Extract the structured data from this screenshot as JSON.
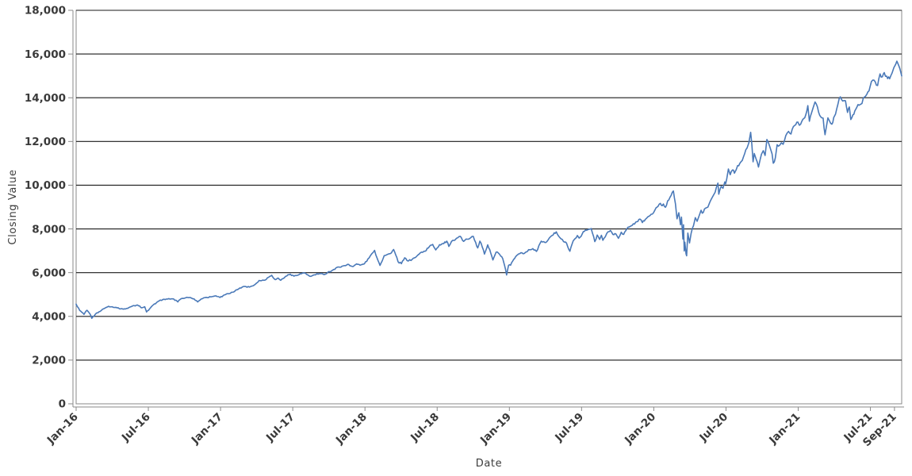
{
  "page": {
    "background": "#ffffff"
  },
  "chart_data": {
    "type": "line",
    "title": "",
    "xlabel": "Date",
    "ylabel": "Closing Value",
    "legend_position": "none",
    "grid": "horizontal-only",
    "ylim": [
      0,
      18000
    ],
    "y_tick_values": [
      0,
      2000,
      4000,
      6000,
      8000,
      10000,
      12000,
      14000,
      16000,
      18000
    ],
    "y_tick_labels": [
      "0",
      "2,000",
      "4,000",
      "6,000",
      "8,000",
      "10,000",
      "12,000",
      "14,000",
      "16,000",
      "18,000"
    ],
    "x_domain_months_from_jan16": [
      0,
      68.6
    ],
    "x_tick_months": [
      0,
      6,
      12,
      18,
      24,
      30,
      36,
      42,
      48,
      54,
      60,
      66,
      68
    ],
    "x_tick_labels": [
      "Jan-16",
      "Jul-16",
      "Jan-17",
      "Jul-17",
      "Jan-18",
      "Jul-18",
      "Jan-19",
      "Jul-19",
      "Jan-20",
      "Jul-20",
      "Jan-21",
      "Jul-21",
      "Sep-21"
    ],
    "colors": {
      "line": "#4a79b8",
      "grid": "#1a1a1a",
      "frame": "#8a8a8a",
      "tick_label": "#3a3a3a",
      "axis_title": "#3c3c3c",
      "background": "#ffffff"
    },
    "series": [
      {
        "name": "Closing Value",
        "color": "#4a79b8",
        "points_format": "[months_after_Jan_2016, closing_value] anchor points read from chart",
        "points": [
          [
            0.0,
            4560
          ],
          [
            0.3,
            4270
          ],
          [
            0.65,
            4090
          ],
          [
            0.9,
            4280
          ],
          [
            1.15,
            4110
          ],
          [
            1.3,
            3910
          ],
          [
            1.6,
            4100
          ],
          [
            1.9,
            4210
          ],
          [
            2.3,
            4350
          ],
          [
            2.7,
            4460
          ],
          [
            3.0,
            4440
          ],
          [
            3.4,
            4390
          ],
          [
            3.9,
            4330
          ],
          [
            4.3,
            4370
          ],
          [
            4.7,
            4480
          ],
          [
            5.1,
            4520
          ],
          [
            5.45,
            4390
          ],
          [
            5.7,
            4440
          ],
          [
            5.85,
            4200
          ],
          [
            6.1,
            4340
          ],
          [
            6.4,
            4520
          ],
          [
            6.8,
            4680
          ],
          [
            7.2,
            4770
          ],
          [
            7.6,
            4790
          ],
          [
            7.9,
            4800
          ],
          [
            8.3,
            4740
          ],
          [
            8.45,
            4660
          ],
          [
            8.7,
            4800
          ],
          [
            9.0,
            4830
          ],
          [
            9.4,
            4860
          ],
          [
            9.8,
            4800
          ],
          [
            10.1,
            4660
          ],
          [
            10.4,
            4800
          ],
          [
            10.8,
            4870
          ],
          [
            11.2,
            4890
          ],
          [
            11.6,
            4940
          ],
          [
            11.95,
            4863
          ],
          [
            12.3,
            4980
          ],
          [
            12.8,
            5050
          ],
          [
            13.2,
            5160
          ],
          [
            13.6,
            5300
          ],
          [
            14.0,
            5370
          ],
          [
            14.4,
            5340
          ],
          [
            14.8,
            5430
          ],
          [
            15.2,
            5640
          ],
          [
            15.6,
            5650
          ],
          [
            16.0,
            5790
          ],
          [
            16.25,
            5880
          ],
          [
            16.55,
            5680
          ],
          [
            16.8,
            5750
          ],
          [
            17.0,
            5650
          ],
          [
            17.4,
            5830
          ],
          [
            17.8,
            5930
          ],
          [
            18.1,
            5840
          ],
          [
            18.5,
            5900
          ],
          [
            18.9,
            5990
          ],
          [
            19.15,
            5920
          ],
          [
            19.5,
            5830
          ],
          [
            19.8,
            5900
          ],
          [
            20.2,
            5950
          ],
          [
            20.6,
            5910
          ],
          [
            20.9,
            6010
          ],
          [
            21.3,
            6110
          ],
          [
            21.8,
            6260
          ],
          [
            22.2,
            6310
          ],
          [
            22.55,
            6380
          ],
          [
            22.95,
            6280
          ],
          [
            23.3,
            6400
          ],
          [
            23.6,
            6340
          ],
          [
            23.95,
            6400
          ],
          [
            24.35,
            6680
          ],
          [
            24.8,
            7020
          ],
          [
            25.0,
            6680
          ],
          [
            25.25,
            6330
          ],
          [
            25.6,
            6780
          ],
          [
            26.1,
            6870
          ],
          [
            26.38,
            7060
          ],
          [
            26.55,
            6820
          ],
          [
            26.75,
            6500
          ],
          [
            27.03,
            6410
          ],
          [
            27.3,
            6680
          ],
          [
            27.6,
            6530
          ],
          [
            27.93,
            6610
          ],
          [
            28.3,
            6750
          ],
          [
            28.7,
            6940
          ],
          [
            29.0,
            6980
          ],
          [
            29.35,
            7190
          ],
          [
            29.63,
            7290
          ],
          [
            29.88,
            7040
          ],
          [
            30.2,
            7280
          ],
          [
            30.55,
            7330
          ],
          [
            30.8,
            7440
          ],
          [
            30.97,
            7200
          ],
          [
            31.3,
            7480
          ],
          [
            31.6,
            7570
          ],
          [
            31.93,
            7660
          ],
          [
            32.2,
            7430
          ],
          [
            32.5,
            7530
          ],
          [
            32.7,
            7560
          ],
          [
            33.0,
            7660
          ],
          [
            33.2,
            7380
          ],
          [
            33.37,
            7130
          ],
          [
            33.55,
            7440
          ],
          [
            33.75,
            7170
          ],
          [
            33.93,
            6850
          ],
          [
            34.2,
            7270
          ],
          [
            34.45,
            6900
          ],
          [
            34.63,
            6580
          ],
          [
            34.9,
            6940
          ],
          [
            35.1,
            6890
          ],
          [
            35.45,
            6640
          ],
          [
            35.6,
            6330
          ],
          [
            35.77,
            5895
          ],
          [
            35.93,
            6330
          ],
          [
            36.1,
            6340
          ],
          [
            36.35,
            6600
          ],
          [
            36.6,
            6780
          ],
          [
            36.95,
            6910
          ],
          [
            37.25,
            6880
          ],
          [
            37.6,
            7050
          ],
          [
            37.95,
            7100
          ],
          [
            38.25,
            6970
          ],
          [
            38.65,
            7440
          ],
          [
            38.95,
            7380
          ],
          [
            39.2,
            7480
          ],
          [
            39.55,
            7700
          ],
          [
            39.9,
            7866
          ],
          [
            40.2,
            7600
          ],
          [
            40.5,
            7420
          ],
          [
            40.75,
            7350
          ],
          [
            41.03,
            6979
          ],
          [
            41.3,
            7450
          ],
          [
            41.65,
            7700
          ],
          [
            41.8,
            7580
          ],
          [
            41.97,
            7670
          ],
          [
            42.15,
            7880
          ],
          [
            42.5,
            7960
          ],
          [
            42.8,
            8016
          ],
          [
            43.1,
            7420
          ],
          [
            43.3,
            7720
          ],
          [
            43.5,
            7520
          ],
          [
            43.65,
            7710
          ],
          [
            43.77,
            7480
          ],
          [
            43.97,
            7640
          ],
          [
            44.2,
            7870
          ],
          [
            44.4,
            7930
          ],
          [
            44.6,
            7750
          ],
          [
            44.85,
            7770
          ],
          [
            45.06,
            7570
          ],
          [
            45.3,
            7850
          ],
          [
            45.5,
            7750
          ],
          [
            45.75,
            7990
          ],
          [
            45.97,
            8090
          ],
          [
            46.2,
            8160
          ],
          [
            46.5,
            8310
          ],
          [
            46.85,
            8450
          ],
          [
            47.05,
            8290
          ],
          [
            47.3,
            8440
          ],
          [
            47.6,
            8580
          ],
          [
            47.97,
            8733
          ],
          [
            48.1,
            8870
          ],
          [
            48.35,
            9030
          ],
          [
            48.55,
            9170
          ],
          [
            48.7,
            9060
          ],
          [
            48.8,
            9140
          ],
          [
            48.97,
            8990
          ],
          [
            49.15,
            9280
          ],
          [
            49.35,
            9450
          ],
          [
            49.63,
            9736
          ],
          [
            49.8,
            9150
          ],
          [
            49.93,
            8461
          ],
          [
            50.08,
            8740
          ],
          [
            50.22,
            8190
          ],
          [
            50.3,
            8540
          ],
          [
            50.42,
            7540
          ],
          [
            50.47,
            8190
          ],
          [
            50.53,
            6994
          ],
          [
            50.58,
            7390
          ],
          [
            50.68,
            6860
          ],
          [
            50.73,
            6771
          ],
          [
            50.83,
            7810
          ],
          [
            50.97,
            7360
          ],
          [
            51.1,
            7790
          ],
          [
            51.3,
            8150
          ],
          [
            51.45,
            8515
          ],
          [
            51.6,
            8350
          ],
          [
            51.8,
            8650
          ],
          [
            51.93,
            8854
          ],
          [
            52.03,
            8720
          ],
          [
            52.3,
            8950
          ],
          [
            52.5,
            9000
          ],
          [
            52.75,
            9330
          ],
          [
            52.97,
            9555
          ],
          [
            53.1,
            9680
          ],
          [
            53.33,
            10094
          ],
          [
            53.4,
            9589
          ],
          [
            53.6,
            9950
          ],
          [
            53.75,
            9860
          ],
          [
            53.9,
            10150
          ],
          [
            53.97,
            10060
          ],
          [
            54.06,
            10280
          ],
          [
            54.2,
            10740
          ],
          [
            54.35,
            10480
          ],
          [
            54.55,
            10700
          ],
          [
            54.7,
            10550
          ],
          [
            54.85,
            10710
          ],
          [
            54.97,
            10900
          ],
          [
            55.15,
            11000
          ],
          [
            55.35,
            11130
          ],
          [
            55.55,
            11440
          ],
          [
            55.75,
            11700
          ],
          [
            55.9,
            11940
          ],
          [
            56.05,
            12420
          ],
          [
            56.15,
            11860
          ],
          [
            56.25,
            11070
          ],
          [
            56.35,
            11450
          ],
          [
            56.5,
            11200
          ],
          [
            56.7,
            10830
          ],
          [
            56.85,
            11200
          ],
          [
            56.95,
            11420
          ],
          [
            57.1,
            11580
          ],
          [
            57.25,
            11360
          ],
          [
            57.4,
            12090
          ],
          [
            57.55,
            11910
          ],
          [
            57.7,
            11660
          ],
          [
            57.83,
            11430
          ],
          [
            57.93,
            11005
          ],
          [
            58.1,
            11250
          ],
          [
            58.25,
            11850
          ],
          [
            58.45,
            11820
          ],
          [
            58.6,
            11940
          ],
          [
            58.75,
            11870
          ],
          [
            58.97,
            12270
          ],
          [
            59.2,
            12460
          ],
          [
            59.4,
            12340
          ],
          [
            59.6,
            12680
          ],
          [
            59.8,
            12770
          ],
          [
            59.97,
            12888
          ],
          [
            60.1,
            12740
          ],
          [
            60.3,
            12920
          ],
          [
            60.55,
            13090
          ],
          [
            60.8,
            13640
          ],
          [
            60.93,
            12925
          ],
          [
            61.1,
            13290
          ],
          [
            61.25,
            13560
          ],
          [
            61.4,
            13807
          ],
          [
            61.6,
            13580
          ],
          [
            61.79,
            13190
          ],
          [
            61.93,
            13090
          ],
          [
            62.07,
            13070
          ],
          [
            62.23,
            12310
          ],
          [
            62.35,
            12700
          ],
          [
            62.47,
            13080
          ],
          [
            62.6,
            12940
          ],
          [
            62.8,
            12790
          ],
          [
            62.95,
            13090
          ],
          [
            63.1,
            13250
          ],
          [
            63.3,
            13700
          ],
          [
            63.5,
            14041
          ],
          [
            63.7,
            13850
          ],
          [
            63.93,
            13860
          ],
          [
            64.1,
            13330
          ],
          [
            64.25,
            13580
          ],
          [
            64.37,
            13002
          ],
          [
            64.55,
            13220
          ],
          [
            64.7,
            13390
          ],
          [
            64.85,
            13540
          ],
          [
            64.97,
            13686
          ],
          [
            65.15,
            13690
          ],
          [
            65.3,
            13740
          ],
          [
            65.5,
            14030
          ],
          [
            65.8,
            14275
          ],
          [
            65.97,
            14500
          ],
          [
            66.2,
            14810
          ],
          [
            66.4,
            14730
          ],
          [
            66.6,
            14560
          ],
          [
            66.8,
            15090
          ],
          [
            67.0,
            14960
          ],
          [
            67.15,
            15150
          ],
          [
            67.35,
            14990
          ],
          [
            67.6,
            14870
          ],
          [
            67.8,
            15130
          ],
          [
            67.95,
            15380
          ],
          [
            68.1,
            15530
          ],
          [
            68.2,
            15675
          ],
          [
            68.35,
            15480
          ],
          [
            68.45,
            15330
          ],
          [
            68.6,
            15000
          ]
        ]
      }
    ]
  }
}
